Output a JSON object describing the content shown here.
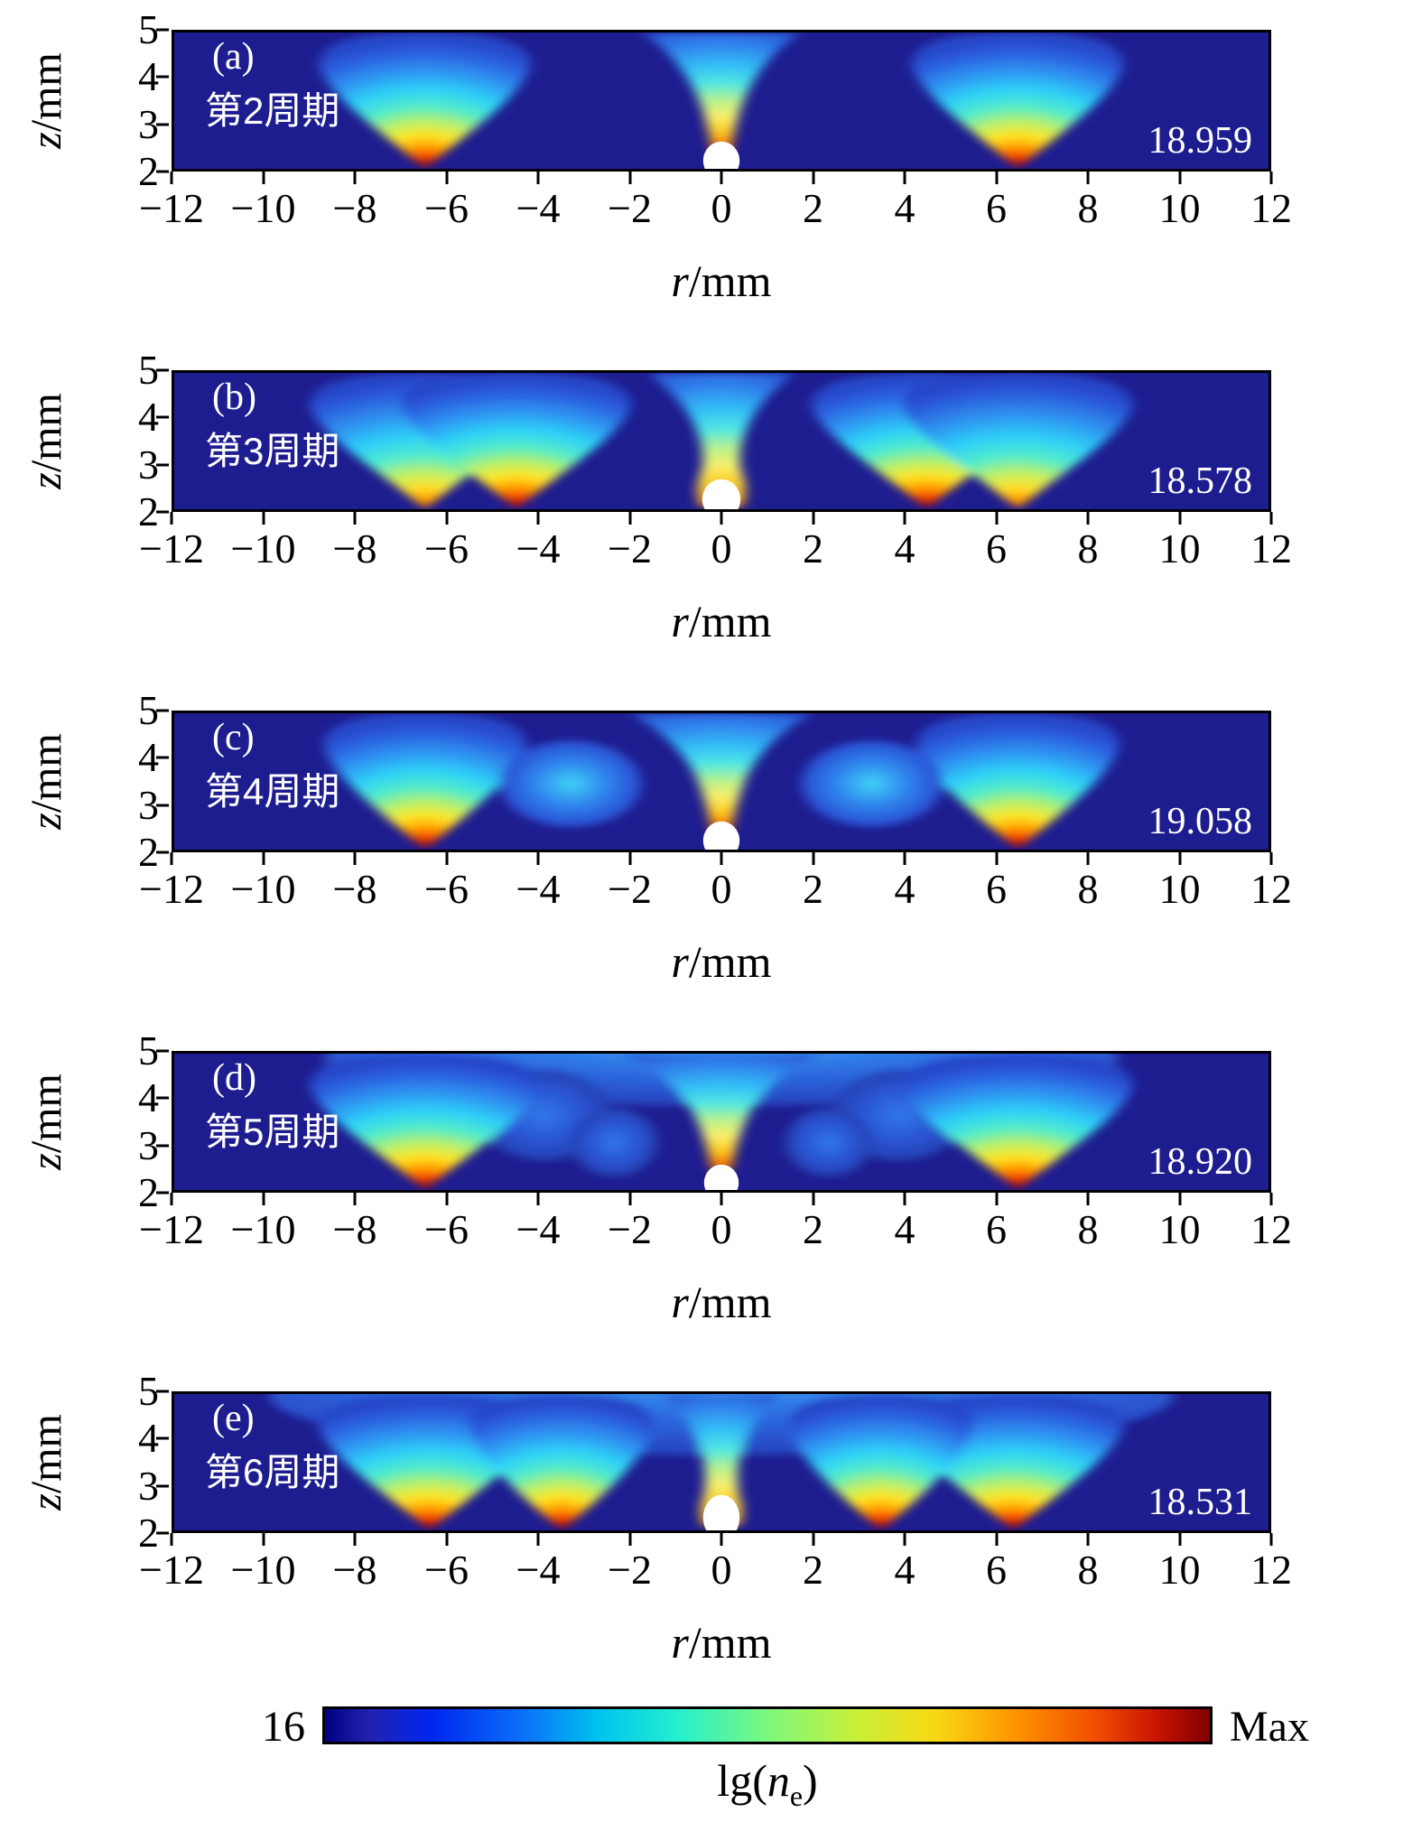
{
  "figure": {
    "x_axis": {
      "var": "r",
      "unit": "/mm",
      "ticks": [
        "−12",
        "−10",
        "−8",
        "−6",
        "−4",
        "−2",
        "0",
        "2",
        "4",
        "6",
        "8",
        "10",
        "12"
      ]
    },
    "y_axis": {
      "var": "z",
      "unit": "/mm",
      "ticks": [
        "5",
        "4",
        "3",
        "2"
      ]
    },
    "panels": [
      {
        "tag": "(a)",
        "cycle": "第2周期",
        "value": "18.959"
      },
      {
        "tag": "(b)",
        "cycle": "第3周期",
        "value": "18.578"
      },
      {
        "tag": "(c)",
        "cycle": "第4周期",
        "value": "19.058"
      },
      {
        "tag": "(d)",
        "cycle": "第5周期",
        "value": "18.920"
      },
      {
        "tag": "(e)",
        "cycle": "第6周期",
        "value": "18.531"
      }
    ],
    "colorbar": {
      "min_label": "16",
      "max_label": "Max",
      "title_prefix": "lg(",
      "title_var": "n",
      "title_sub": "e",
      "title_suffix": ")"
    },
    "colors": {
      "background": "#1e1d90",
      "hot_core": "#8a0500",
      "panel_text": "#ffffff",
      "axis_text": "#000000"
    }
  },
  "chart_data": {
    "type": "heatmap",
    "subplots": 5,
    "x": {
      "label": "r/mm",
      "range": [
        -12,
        12
      ],
      "ticks": [
        -12,
        -10,
        -8,
        -6,
        -4,
        -2,
        0,
        2,
        4,
        6,
        8,
        10,
        12
      ]
    },
    "y": {
      "label": "z/mm",
      "range": [
        2,
        5
      ],
      "ticks": [
        2,
        3,
        4,
        5
      ]
    },
    "colorbar": {
      "label": "lg(ne)",
      "min": "16",
      "max": "Max",
      "colormap": "jet"
    },
    "panels": [
      {
        "tag": "(a)",
        "cycle_label": "第2周期",
        "cycle_number": 2,
        "annotation_value": 18.959,
        "hot_spot_r_mm": [
          -6.5,
          0,
          6.5
        ],
        "description": "two side plumes and a narrow central jet above a white droplet at r=0"
      },
      {
        "tag": "(b)",
        "cycle_label": "第3周期",
        "cycle_number": 3,
        "annotation_value": 18.578,
        "hot_spot_r_mm": [
          -6.5,
          -4.5,
          0,
          4.5,
          6.5
        ],
        "description": "broad merged plumes with two hot cores per side, short central jet around droplet"
      },
      {
        "tag": "(c)",
        "cycle_label": "第4周期",
        "cycle_number": 4,
        "annotation_value": 19.058,
        "hot_spot_r_mm": [
          -6.5,
          0,
          6.5
        ],
        "description": "side plumes with detached blue blobs at ±3.3, central funnel jet"
      },
      {
        "tag": "(d)",
        "cycle_label": "第5周期",
        "cycle_number": 5,
        "annotation_value": 18.92,
        "hot_spot_r_mm": [
          -6.5,
          0,
          6.5
        ],
        "description": "large side plumes, faint mid blobs, wide central funnel jet"
      },
      {
        "tag": "(e)",
        "cycle_label": "第6周期",
        "cycle_number": 6,
        "annotation_value": 18.531,
        "hot_spot_r_mm": [
          -6.4,
          -3.5,
          0,
          3.5,
          6.4
        ],
        "description": "four hot cores plus narrow central jet, broad cloud across the top"
      }
    ]
  }
}
